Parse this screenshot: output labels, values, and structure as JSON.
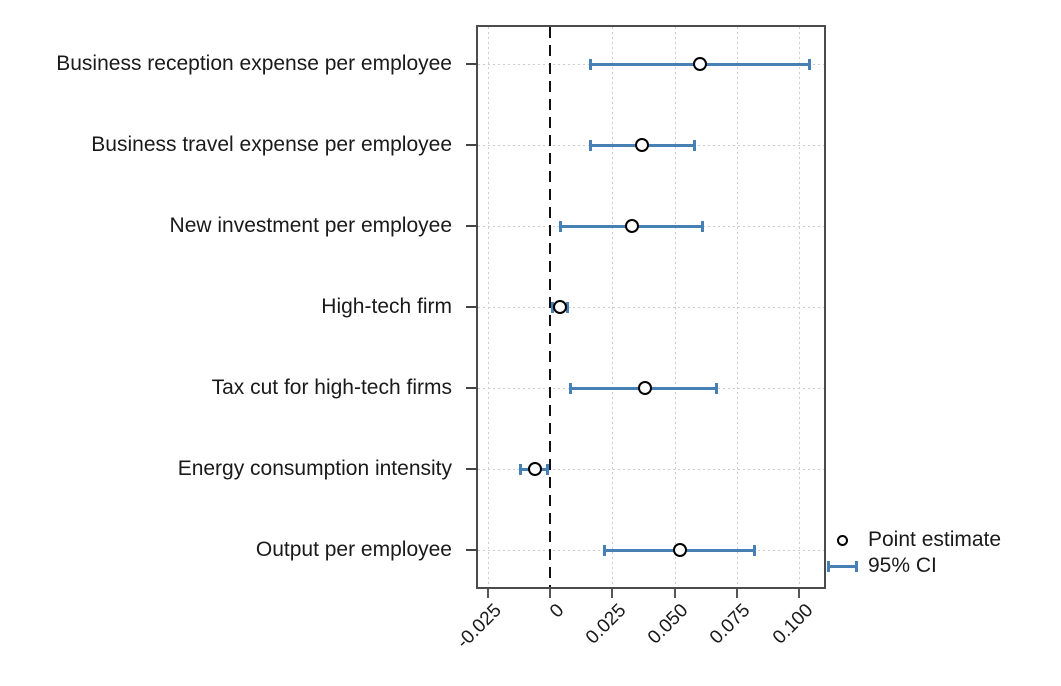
{
  "chart_data": {
    "type": "scatter",
    "subtype": "coefficient-plot-horizontal-errorbars",
    "title": "",
    "xlabel": "",
    "ylabel": "",
    "xlim": [
      -0.029,
      0.11
    ],
    "grid": "dotted",
    "zero_reference_line": 0,
    "categories": [
      "Business reception expense per employee",
      "Business travel expense per employee",
      "New investment per employee",
      "High-tech firm",
      "Tax cut for high-tech firms",
      "Energy consumption intensity",
      "Output per employee"
    ],
    "points": [
      {
        "label": "Business reception expense per employee",
        "estimate": 0.06,
        "ci_low": 0.016,
        "ci_high": 0.104
      },
      {
        "label": "Business travel expense per employee",
        "estimate": 0.037,
        "ci_low": 0.016,
        "ci_high": 0.058
      },
      {
        "label": "New investment per employee",
        "estimate": 0.033,
        "ci_low": 0.004,
        "ci_high": 0.061
      },
      {
        "label": "High-tech firm",
        "estimate": 0.004,
        "ci_low": 0.001,
        "ci_high": 0.007
      },
      {
        "label": "Tax cut for high-tech firms",
        "estimate": 0.038,
        "ci_low": 0.008,
        "ci_high": 0.067
      },
      {
        "label": "Energy consumption intensity",
        "estimate": -0.006,
        "ci_low": -0.012,
        "ci_high": -0.001
      },
      {
        "label": "Output per employee",
        "estimate": 0.052,
        "ci_low": 0.022,
        "ci_high": 0.082
      }
    ],
    "xticks": {
      "values": [
        -0.025,
        0,
        0.025,
        0.05,
        0.075,
        0.1
      ],
      "labels": [
        "-0.025",
        "0",
        "0.025",
        "0.050",
        "0.075",
        "0.100"
      ]
    },
    "legend": {
      "position": "outside-right-bottom",
      "entries": [
        {
          "marker": "open-circle",
          "label": "Point estimate"
        },
        {
          "marker": "errorbar",
          "label": "95% CI"
        }
      ]
    },
    "colors": {
      "ci": "#4680b4",
      "marker_fill": "#ffffff",
      "marker_stroke": "#000000",
      "grid": "#cdcdcd",
      "axis_frame": "#4c4c4c",
      "zero_line": "#111111",
      "text": "#1a1a1a"
    }
  }
}
